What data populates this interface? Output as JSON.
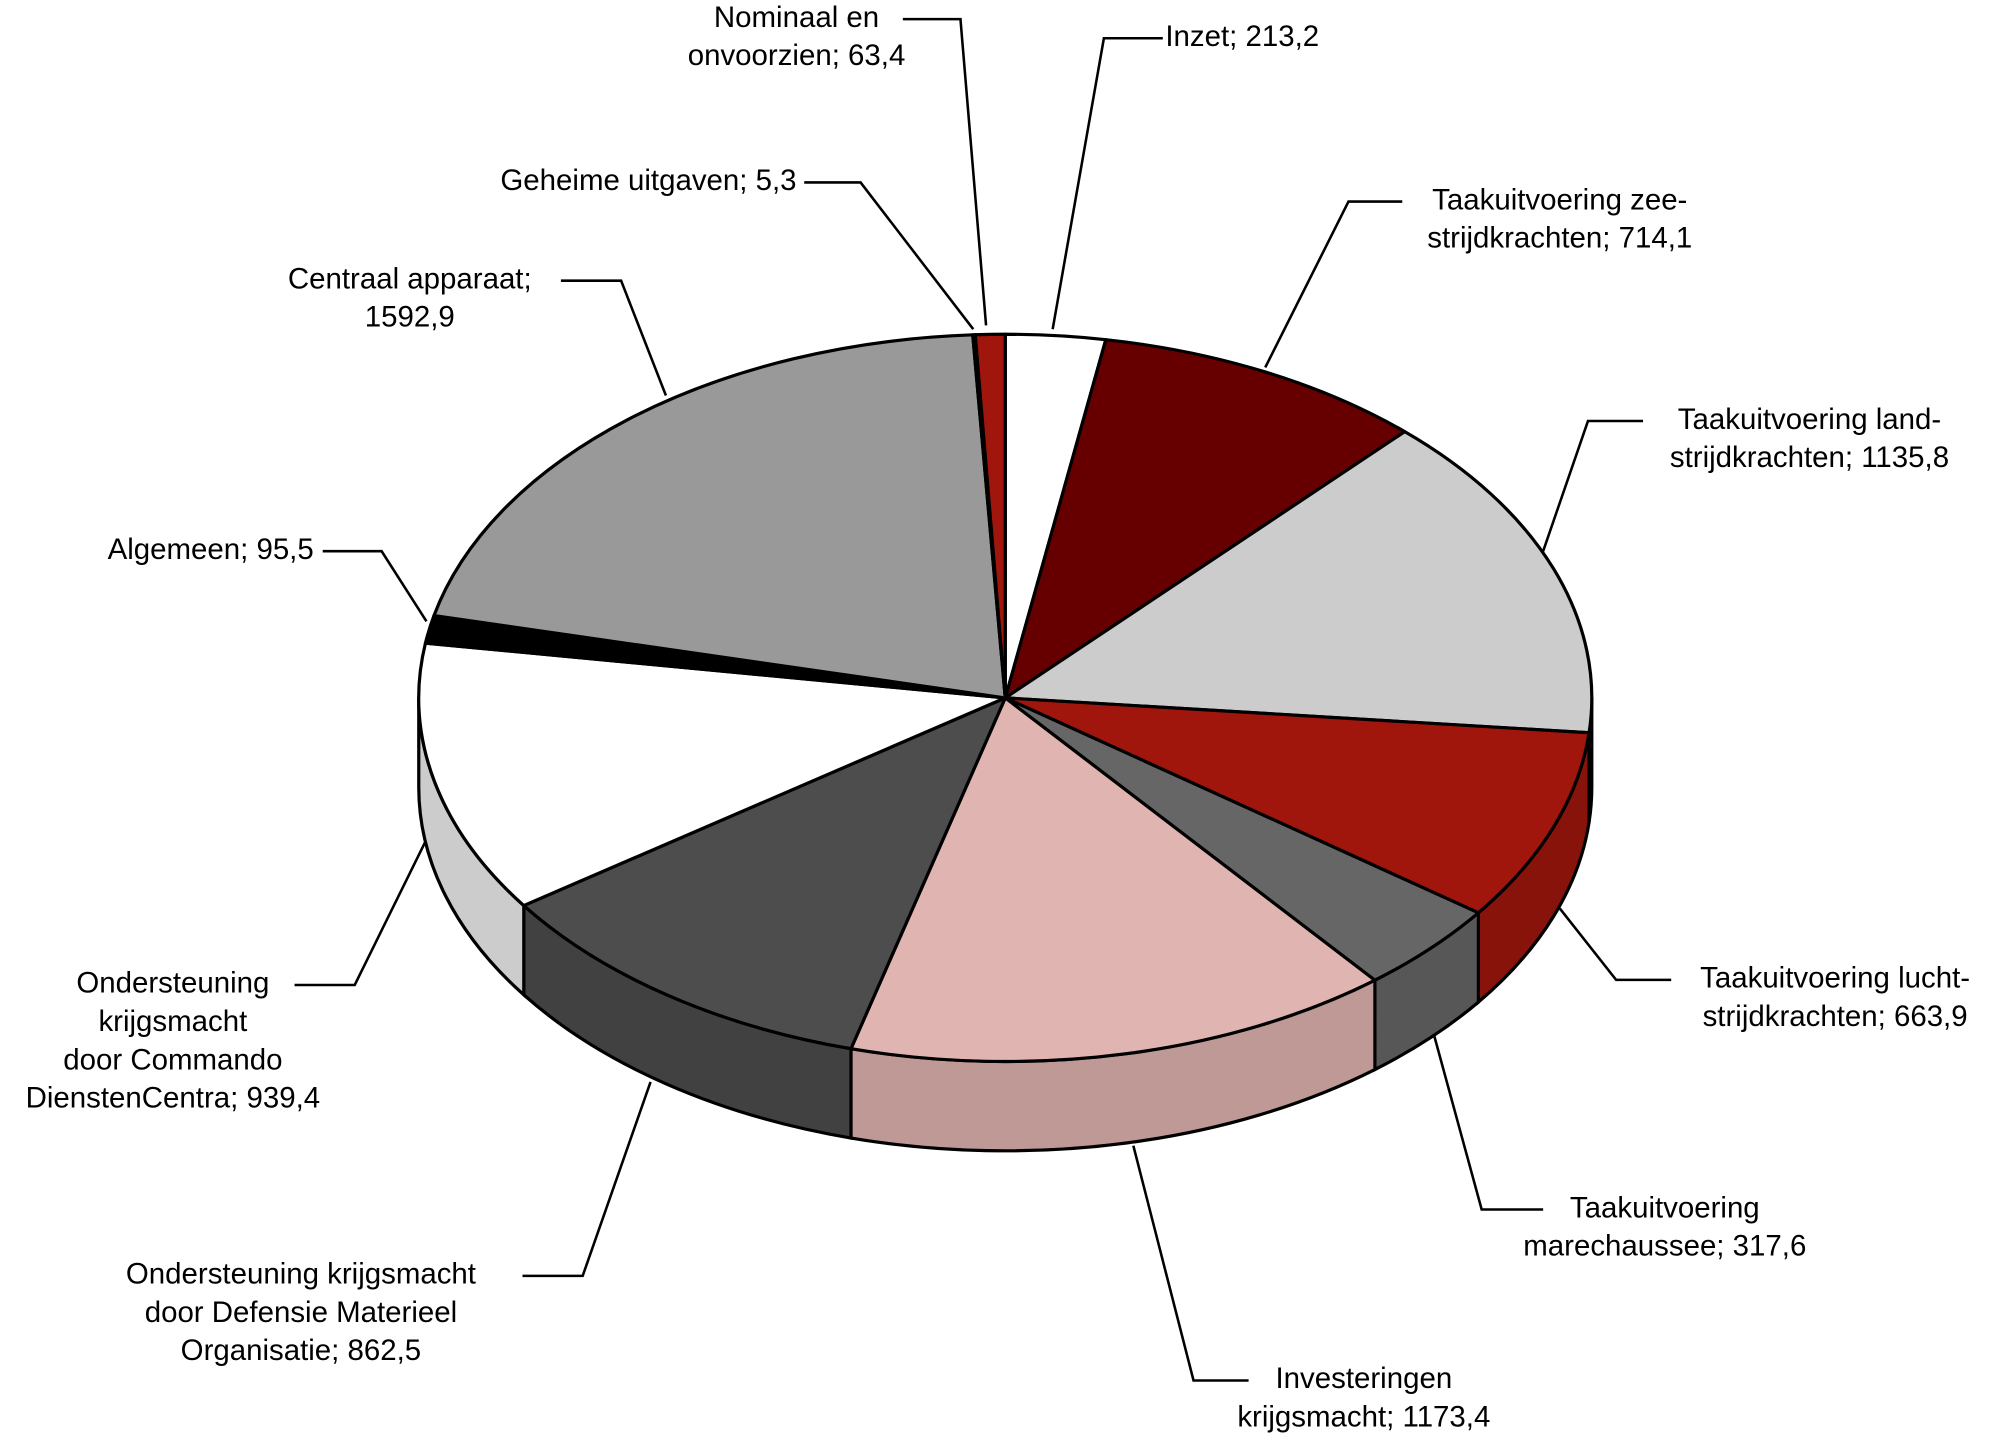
{
  "chart_data": {
    "type": "pie3d",
    "labels": [
      [
        "Inzet; 213,2"
      ],
      [
        "Taakuitvoering zee-",
        "strijdkrachten; 714,1"
      ],
      [
        "Taakuitvoering land-",
        "strijdkrachten; 1135,8"
      ],
      [
        "Taakuitvoering lucht-",
        "strijdkrachten; 663,9"
      ],
      [
        "Taakuitvoering",
        "marechaussee; 317,6"
      ],
      [
        "Investeringen",
        "krijgsmacht; 1173,4"
      ],
      [
        "Ondersteuning krijgsmacht",
        "door Defensie Materieel",
        "Organisatie; 862,5"
      ],
      [
        "Ondersteuning",
        "krijgsmacht",
        "door Commando",
        "DienstenCentra; 939,4"
      ],
      [
        "Algemeen; 95,5"
      ],
      [
        "Centraal apparaat;",
        "1592,9"
      ],
      [
        "Geheime uitgaven; 5,3"
      ],
      [
        "Nominaal en",
        "onvoorzien; 63,4"
      ]
    ],
    "values": [
      213.2,
      714.1,
      1135.8,
      663.9,
      317.6,
      1173.4,
      862.5,
      939.4,
      95.5,
      1592.9,
      5.3,
      63.4
    ],
    "colors": [
      "#ffffff",
      "#660000",
      "#cccccc",
      "#a0160c",
      "#666666",
      "#e0b4b0",
      "#4d4d4d",
      "#ffffff",
      "#000000",
      "#999999",
      "#000000",
      "#a0160c"
    ]
  }
}
